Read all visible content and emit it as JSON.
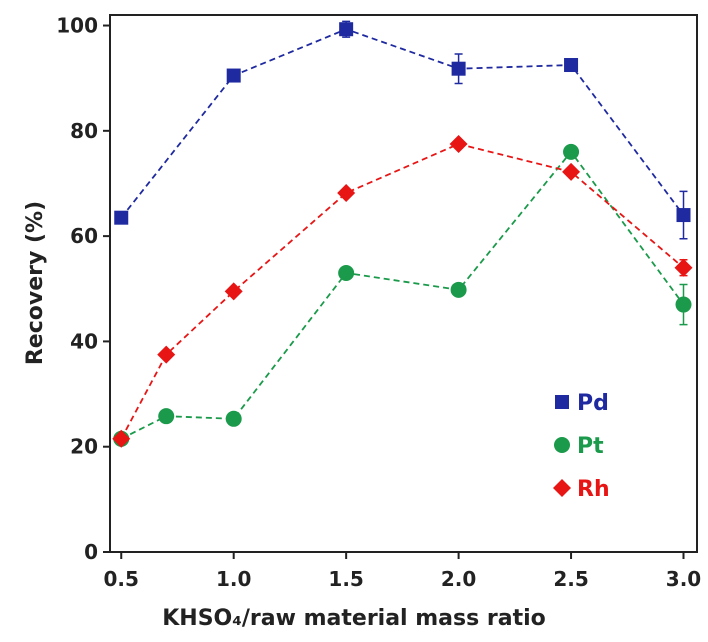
{
  "chart_data": {
    "type": "line",
    "xlabel": "KHSO₄/raw material mass ratio",
    "ylabel": "Recovery (%)",
    "xlim": [
      0.45,
      3.06
    ],
    "ylim": [
      0,
      102
    ],
    "xticks": [
      0.5,
      {
        "value": 1,
        "label": "1.0"
      },
      1.5,
      {
        "value": 2,
        "label": "2.0"
      },
      2.5,
      {
        "value": 3,
        "label": "3.0"
      }
    ],
    "yticks": [
      0,
      20,
      40,
      60,
      80,
      100
    ],
    "legend": "center right",
    "series": [
      {
        "name": "Pd",
        "color": "#1f2aa0",
        "marker": "square",
        "x": [
          0.5,
          1.0,
          1.5,
          2.0,
          2.5,
          3.0
        ],
        "values": [
          63.5,
          90.5,
          99.3,
          91.8,
          92.5,
          64
        ],
        "errors": [
          0.5,
          1,
          1.5,
          2.8,
          0.6,
          4.5
        ]
      },
      {
        "name": "Pt",
        "color": "#1a9a4a",
        "marker": "circle",
        "x": [
          0.5,
          0.7,
          1.0,
          1.5,
          2.0,
          2.5,
          3.0
        ],
        "values": [
          21.5,
          25.8,
          25.3,
          53,
          49.8,
          76,
          47
        ],
        "errors": [
          0.5,
          0.5,
          0.5,
          0.8,
          0.6,
          1,
          3.8
        ]
      },
      {
        "name": "Rh",
        "color": "#e81515",
        "marker": "diamond",
        "x": [
          0.5,
          0.7,
          1.0,
          1.5,
          2.0,
          2.5,
          3.0
        ],
        "values": [
          21.5,
          37.5,
          49.5,
          68.2,
          77.5,
          72.2,
          54
        ],
        "errors": [
          0.5,
          0.5,
          0.5,
          0.6,
          0.8,
          0.6,
          1.5
        ]
      }
    ]
  }
}
